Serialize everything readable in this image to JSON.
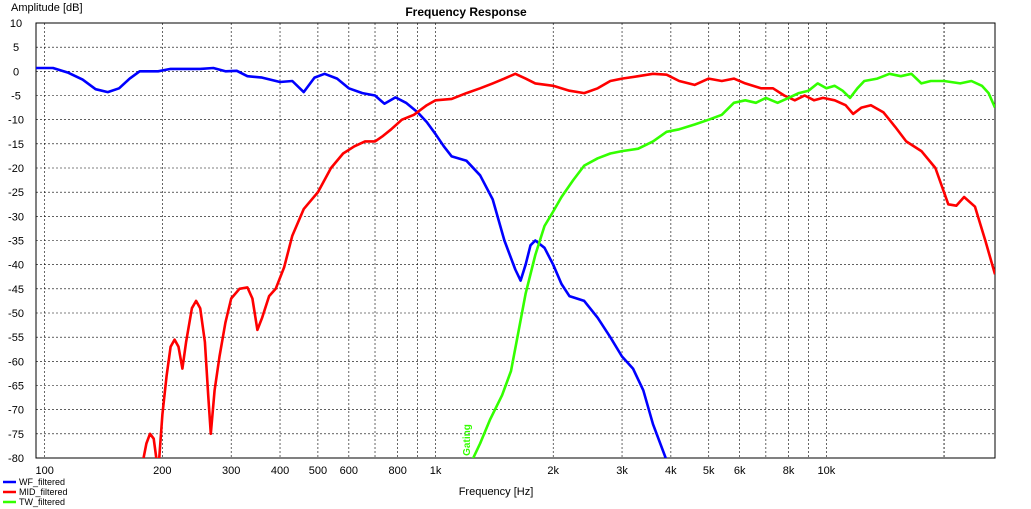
{
  "chart_data": {
    "type": "line",
    "title": "Frequency Response",
    "xlabel": "Frequency [Hz]",
    "ylabel": "Amplitude [dB]",
    "x_scale": "log",
    "xlim": [
      95,
      27000
    ],
    "ylim": [
      -80,
      10
    ],
    "grid": true,
    "legend_position": "bottom-left",
    "annotation": "Gating",
    "x_tick_labels": [
      {
        "value": 100,
        "label": "100"
      },
      {
        "value": 200,
        "label": "200"
      },
      {
        "value": 300,
        "label": "300"
      },
      {
        "value": 400,
        "label": "400"
      },
      {
        "value": 500,
        "label": "500"
      },
      {
        "value": 600,
        "label": "600"
      },
      {
        "value": 800,
        "label": "800"
      },
      {
        "value": 1000,
        "label": "1k"
      },
      {
        "value": 2000,
        "label": "2k"
      },
      {
        "value": 3000,
        "label": "3k"
      },
      {
        "value": 4000,
        "label": "4k"
      },
      {
        "value": 5000,
        "label": "5k"
      },
      {
        "value": 6000,
        "label": "6k"
      },
      {
        "value": 8000,
        "label": "8k"
      },
      {
        "value": 10000,
        "label": "10k"
      }
    ],
    "y_ticks": [
      10,
      5,
      0,
      -5,
      -10,
      -15,
      -20,
      -25,
      -30,
      -35,
      -40,
      -45,
      -50,
      -55,
      -60,
      -65,
      -70,
      -75,
      -80
    ],
    "series": [
      {
        "name": "WF_filtered",
        "color": "#0000ff",
        "points": [
          [
            95,
            0.7
          ],
          [
            105,
            0.7
          ],
          [
            115,
            -0.3
          ],
          [
            125,
            -1.7
          ],
          [
            135,
            -3.7
          ],
          [
            145,
            -4.3
          ],
          [
            155,
            -3.5
          ],
          [
            165,
            -1.5
          ],
          [
            175,
            0.0
          ],
          [
            195,
            0.0
          ],
          [
            210,
            0.5
          ],
          [
            230,
            0.5
          ],
          [
            250,
            0.5
          ],
          [
            270,
            0.7
          ],
          [
            290,
            0.0
          ],
          [
            310,
            0.1
          ],
          [
            330,
            -1.0
          ],
          [
            360,
            -1.3
          ],
          [
            400,
            -2.2
          ],
          [
            430,
            -2.0
          ],
          [
            460,
            -4.3
          ],
          [
            490,
            -1.3
          ],
          [
            520,
            -0.5
          ],
          [
            560,
            -1.5
          ],
          [
            600,
            -3.5
          ],
          [
            650,
            -4.5
          ],
          [
            700,
            -5.0
          ],
          [
            740,
            -6.7
          ],
          [
            790,
            -5.4
          ],
          [
            840,
            -6.5
          ],
          [
            900,
            -8.5
          ],
          [
            950,
            -10.5
          ],
          [
            1000,
            -13.0
          ],
          [
            1050,
            -15.5
          ],
          [
            1100,
            -17.6
          ],
          [
            1200,
            -18.5
          ],
          [
            1300,
            -21.5
          ],
          [
            1400,
            -26.5
          ],
          [
            1500,
            -35.0
          ],
          [
            1600,
            -41.0
          ],
          [
            1650,
            -43.3
          ],
          [
            1700,
            -40.0
          ],
          [
            1750,
            -36.0
          ],
          [
            1800,
            -35.0
          ],
          [
            1900,
            -36.5
          ],
          [
            2000,
            -40.0
          ],
          [
            2100,
            -44.0
          ],
          [
            2200,
            -46.5
          ],
          [
            2400,
            -47.5
          ],
          [
            2600,
            -51.0
          ],
          [
            2800,
            -55.0
          ],
          [
            3000,
            -59.0
          ],
          [
            3200,
            -61.5
          ],
          [
            3400,
            -66.0
          ],
          [
            3600,
            -73.0
          ],
          [
            3900,
            -80.5
          ]
        ]
      },
      {
        "name": "MID_filtered",
        "color": "#ff0000",
        "points": [
          [
            178,
            -81
          ],
          [
            182,
            -77
          ],
          [
            186,
            -75
          ],
          [
            190,
            -76
          ],
          [
            193,
            -80
          ],
          [
            196,
            -81
          ],
          [
            200,
            -71
          ],
          [
            205,
            -63
          ],
          [
            210,
            -57
          ],
          [
            215,
            -55.5
          ],
          [
            220,
            -57
          ],
          [
            225,
            -61.5
          ],
          [
            230,
            -56
          ],
          [
            238,
            -49
          ],
          [
            244,
            -47.5
          ],
          [
            250,
            -49
          ],
          [
            257,
            -56
          ],
          [
            262,
            -67
          ],
          [
            266,
            -75
          ],
          [
            272,
            -66
          ],
          [
            280,
            -59
          ],
          [
            290,
            -52
          ],
          [
            300,
            -47
          ],
          [
            315,
            -45
          ],
          [
            330,
            -44.7
          ],
          [
            340,
            -47
          ],
          [
            350,
            -53.5
          ],
          [
            360,
            -51
          ],
          [
            375,
            -46.5
          ],
          [
            390,
            -45
          ],
          [
            410,
            -40.5
          ],
          [
            430,
            -34.0
          ],
          [
            460,
            -28.5
          ],
          [
            500,
            -25.0
          ],
          [
            540,
            -20.0
          ],
          [
            580,
            -17.0
          ],
          [
            620,
            -15.5
          ],
          [
            660,
            -14.5
          ],
          [
            700,
            -14.5
          ],
          [
            730,
            -13.5
          ],
          [
            770,
            -12.0
          ],
          [
            820,
            -10.0
          ],
          [
            880,
            -9.0
          ],
          [
            950,
            -7.0
          ],
          [
            1000,
            -6.0
          ],
          [
            1100,
            -5.7
          ],
          [
            1200,
            -4.5
          ],
          [
            1300,
            -3.5
          ],
          [
            1400,
            -2.5
          ],
          [
            1500,
            -1.5
          ],
          [
            1600,
            -0.5
          ],
          [
            1700,
            -1.5
          ],
          [
            1800,
            -2.5
          ],
          [
            2000,
            -3.0
          ],
          [
            2200,
            -4.0
          ],
          [
            2400,
            -4.5
          ],
          [
            2600,
            -3.5
          ],
          [
            2800,
            -2.0
          ],
          [
            3000,
            -1.5
          ],
          [
            3300,
            -1.0
          ],
          [
            3600,
            -0.5
          ],
          [
            3900,
            -0.7
          ],
          [
            4200,
            -2.0
          ],
          [
            4600,
            -2.8
          ],
          [
            5000,
            -1.5
          ],
          [
            5400,
            -2.0
          ],
          [
            5800,
            -1.5
          ],
          [
            6200,
            -2.5
          ],
          [
            6800,
            -3.5
          ],
          [
            7300,
            -3.5
          ],
          [
            7800,
            -5.0
          ],
          [
            8300,
            -6.0
          ],
          [
            8800,
            -5.0
          ],
          [
            9300,
            -6.0
          ],
          [
            9800,
            -5.5
          ],
          [
            10500,
            -6.0
          ],
          [
            11200,
            -7.0
          ],
          [
            11700,
            -8.8
          ],
          [
            12300,
            -7.5
          ],
          [
            13000,
            -7.0
          ],
          [
            14000,
            -8.5
          ],
          [
            15000,
            -11.5
          ],
          [
            16000,
            -14.5
          ],
          [
            17500,
            -16.5
          ],
          [
            19000,
            -20.0
          ],
          [
            20500,
            -27.5
          ],
          [
            21500,
            -27.8
          ],
          [
            22500,
            -26.0
          ],
          [
            24000,
            -28.0
          ],
          [
            25500,
            -35.0
          ],
          [
            27000,
            -42.0
          ]
        ]
      },
      {
        "name": "TW_filtered",
        "color": "#33ff00",
        "points": [
          [
            1240,
            -80.5
          ],
          [
            1300,
            -77.0
          ],
          [
            1380,
            -72.0
          ],
          [
            1480,
            -67.0
          ],
          [
            1560,
            -62.0
          ],
          [
            1620,
            -55.0
          ],
          [
            1700,
            -46.0
          ],
          [
            1800,
            -38.0
          ],
          [
            1900,
            -32.0
          ],
          [
            2000,
            -29.0
          ],
          [
            2100,
            -26.0
          ],
          [
            2250,
            -22.5
          ],
          [
            2400,
            -19.5
          ],
          [
            2600,
            -18.0
          ],
          [
            2800,
            -17.0
          ],
          [
            3000,
            -16.5
          ],
          [
            3300,
            -16.0
          ],
          [
            3600,
            -14.5
          ],
          [
            3900,
            -12.5
          ],
          [
            4200,
            -12.0
          ],
          [
            4600,
            -11.0
          ],
          [
            5000,
            -10.0
          ],
          [
            5400,
            -9.0
          ],
          [
            5800,
            -6.5
          ],
          [
            6200,
            -6.0
          ],
          [
            6600,
            -6.5
          ],
          [
            7000,
            -5.5
          ],
          [
            7500,
            -6.5
          ],
          [
            8000,
            -5.5
          ],
          [
            8500,
            -4.5
          ],
          [
            9000,
            -4.0
          ],
          [
            9500,
            -2.5
          ],
          [
            10000,
            -3.5
          ],
          [
            10500,
            -3.0
          ],
          [
            11000,
            -4.0
          ],
          [
            11500,
            -5.5
          ],
          [
            12000,
            -3.5
          ],
          [
            12500,
            -2.0
          ],
          [
            13500,
            -1.5
          ],
          [
            14500,
            -0.5
          ],
          [
            15500,
            -1.0
          ],
          [
            16500,
            -0.5
          ],
          [
            17500,
            -2.5
          ],
          [
            18500,
            -2.0
          ],
          [
            20000,
            -2.0
          ],
          [
            22000,
            -2.5
          ],
          [
            23500,
            -2.0
          ],
          [
            25000,
            -3.0
          ],
          [
            26000,
            -4.5
          ],
          [
            27000,
            -7.5
          ]
        ]
      }
    ]
  }
}
